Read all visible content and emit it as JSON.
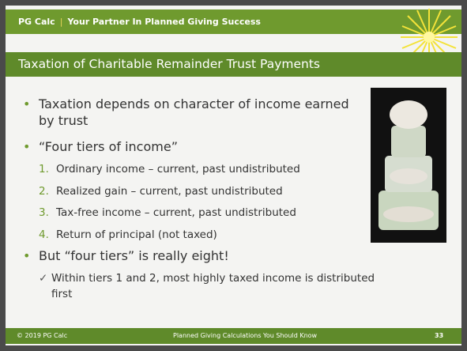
{
  "header": {
    "brand": "PG Calc",
    "separator": "|",
    "tagline": "Your Partner In Planned Giving Success"
  },
  "title": "Taxation of Charitable Remainder Trust Payments",
  "bullets": [
    {
      "text": "Taxation depends on character of income earned by trust"
    },
    {
      "text": "“Four tiers of income”",
      "items": [
        {
          "number": "1.",
          "text": "Ordinary income – current, past undistributed"
        },
        {
          "number": "2.",
          "text": "Realized gain – current, past undistributed"
        },
        {
          "number": "3.",
          "text": "Tax-free income – current, past undistributed"
        },
        {
          "number": "4.",
          "text": "Return of principal (not taxed)"
        }
      ]
    },
    {
      "text": "But “four tiers” is really eight!",
      "checks": [
        {
          "text": "Within tiers 1 and 2, most highly taxed income is distributed first"
        }
      ]
    }
  ],
  "footer": {
    "copyright": "© 2019 PG Calc",
    "subtitle": "Planned Giving Calculations You Should Know",
    "page": "33"
  }
}
